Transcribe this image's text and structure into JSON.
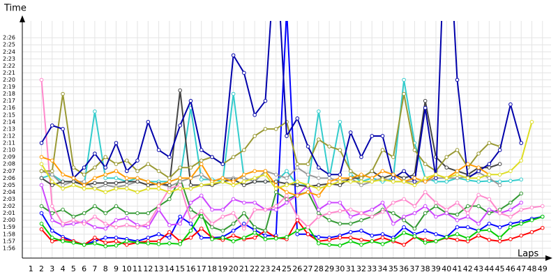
{
  "chart_data": {
    "type": "line",
    "y_label": "Time",
    "x_label": "Laps",
    "x": [
      1,
      2,
      3,
      4,
      5,
      6,
      7,
      8,
      9,
      10,
      11,
      12,
      13,
      14,
      15,
      16,
      17,
      18,
      19,
      20,
      21,
      22,
      23,
      24,
      25,
      26,
      27,
      28,
      29,
      30,
      31,
      32,
      33,
      34,
      35,
      36,
      37,
      38,
      39,
      40,
      41,
      42,
      43,
      44,
      45,
      46,
      47,
      48,
      49
    ],
    "xlim": [
      0.2,
      49.8
    ],
    "ylim": [
      114.6,
      148.4
    ],
    "yticks": [
      {
        "value": 116,
        "label": "1:56"
      },
      {
        "value": 117,
        "label": "1:57"
      },
      {
        "value": 118,
        "label": "1:58"
      },
      {
        "value": 119,
        "label": "1:59"
      },
      {
        "value": 120,
        "label": "2:00"
      },
      {
        "value": 121,
        "label": "2:01"
      },
      {
        "value": 122,
        "label": "2:02"
      },
      {
        "value": 123,
        "label": "2:03"
      },
      {
        "value": 124,
        "label": "2:04"
      },
      {
        "value": 125,
        "label": "2:05"
      },
      {
        "value": 126,
        "label": "2:06"
      },
      {
        "value": 127,
        "label": "2:07"
      },
      {
        "value": 128,
        "label": "2:08"
      },
      {
        "value": 129,
        "label": "2:09"
      },
      {
        "value": 130,
        "label": "2:10"
      },
      {
        "value": 131,
        "label": "2:11"
      },
      {
        "value": 132,
        "label": "2:12"
      },
      {
        "value": 133,
        "label": "2:13"
      },
      {
        "value": 134,
        "label": "2:14"
      },
      {
        "value": 135,
        "label": "2:15"
      },
      {
        "value": 136,
        "label": "2:16"
      },
      {
        "value": 137,
        "label": "2:17"
      },
      {
        "value": 138,
        "label": "2:18"
      },
      {
        "value": 139,
        "label": "2:19"
      },
      {
        "value": 140,
        "label": "2:20"
      },
      {
        "value": 141,
        "label": "2:21"
      },
      {
        "value": 142,
        "label": "2:22"
      },
      {
        "value": 143,
        "label": "2:23"
      },
      {
        "value": 144,
        "label": "2:24"
      },
      {
        "value": 145,
        "label": "2:25"
      },
      {
        "value": 146,
        "label": "2:26"
      }
    ],
    "grid": true,
    "series": [
      {
        "color": "#0000ff",
        "values": [
          null,
          121,
          118.5,
          117.6,
          117,
          116.5,
          117,
          117.5,
          117.5,
          117.3,
          117,
          117.5,
          118,
          117.5,
          120.5,
          119.5,
          117.5,
          117.5,
          117.6,
          118.5,
          119.5,
          118.6,
          117.8,
          117.8,
          150,
          118,
          118,
          117.6,
          117.5,
          117.8,
          118.3,
          118.5,
          117.8,
          118,
          117.5,
          119,
          118,
          118.5,
          118,
          117.6,
          119,
          119,
          118.5,
          119.5,
          119,
          119.5,
          119.8,
          120.2,
          120.5
        ]
      },
      {
        "color": "#ff0000",
        "values": [
          null,
          118.7,
          117,
          117.3,
          117,
          116.5,
          117.5,
          116.8,
          117,
          116.5,
          116.8,
          117,
          117,
          118.3,
          117,
          117.5,
          118.8,
          117.5,
          117.2,
          117.8,
          117.3,
          117.5,
          118.5,
          117.5,
          117.3,
          120,
          118,
          117,
          117.2,
          117.5,
          117.5,
          117.2,
          117,
          117.5,
          117,
          116.5,
          117.6,
          117.2,
          117,
          117.5,
          117.2,
          117,
          117.8,
          117.2,
          117,
          117.3,
          117.8,
          118.3,
          118.9
        ]
      },
      {
        "color": "#00cc00",
        "values": [
          null,
          119.5,
          117.5,
          117,
          116.8,
          116.5,
          116.7,
          116.3,
          116.4,
          117,
          116.8,
          116.7,
          116.6,
          116.7,
          116.6,
          118.5,
          121,
          117.3,
          117.5,
          117,
          117.5,
          118.2,
          117.3,
          117.4,
          117.6,
          118.5,
          119,
          116.7,
          116.5,
          116.4,
          117,
          116.5,
          117,
          116.6,
          117.2,
          118.2,
          117.7,
          116.8,
          117,
          117.6,
          118,
          117.4,
          118.5,
          118.6,
          117.5,
          119,
          119.5,
          120,
          120.5
        ]
      },
      {
        "color": "#339933",
        "values": [
          null,
          122,
          121,
          121.5,
          120.5,
          121,
          122,
          121,
          122,
          121,
          121,
          121,
          122,
          123,
          126,
          121.5,
          120.5,
          119,
          118.5,
          119.5,
          121,
          119,
          118.5,
          124,
          123,
          123.6,
          124,
          121,
          120,
          119.5,
          119.5,
          120,
          120.5,
          121.5,
          121,
          120,
          118.8,
          121,
          122,
          121,
          120.8,
          122,
          122,
          121,
          121.5,
          122.5,
          123.8,
          null,
          null
        ]
      },
      {
        "color": "#cc44ff",
        "values": [
          null,
          125,
          120,
          119.3,
          119.5,
          119.8,
          119,
          118.8,
          120,
          120.3,
          119.3,
          119,
          121.5,
          119.3,
          119.5,
          122.5,
          123.5,
          121.5,
          121.5,
          123,
          122.5,
          122.5,
          121.5,
          121.5,
          122.5,
          123.6,
          125,
          121.5,
          122.5,
          122.5,
          120.5,
          121,
          121.5,
          122.5,
          119.5,
          120.5,
          121,
          122,
          120.5,
          121,
          120,
          120.5,
          119.5,
          121.5,
          121,
          121.5,
          122.5,
          null,
          null
        ]
      },
      {
        "color": "#ff88cc",
        "values": [
          null,
          140,
          122,
          119.5,
          120,
          119.5,
          120.5,
          119.5,
          119,
          119.3,
          119,
          119.5,
          122,
          124.5,
          125,
          120,
          121.3,
          119.5,
          120.5,
          121,
          118.8,
          121.5,
          121.5,
          122,
          123.5,
          120.5,
          119,
          120.5,
          121,
          121.3,
          121.5,
          121,
          120.5,
          121.2,
          122.5,
          123,
          122,
          124,
          122.5,
          121.5,
          122.5,
          121,
          123.6,
          123,
          121,
          120.5,
          121.5,
          121.8,
          122
        ]
      },
      {
        "color": "#33cccc",
        "values": [
          null,
          126,
          126.5,
          125.5,
          125.5,
          125,
          135.5,
          126,
          126,
          125.5,
          126,
          125.5,
          125.5,
          125.5,
          126,
          136,
          125.8,
          125.8,
          125.5,
          138,
          126,
          125.5,
          125.5,
          125.5,
          127,
          125,
          125,
          135.5,
          126,
          134,
          126.5,
          125.5,
          126,
          125.5,
          126,
          140,
          131,
          126,
          125.5,
          125.5,
          126,
          125.7,
          125.5,
          125.6,
          125.5,
          125.6,
          125.8,
          null,
          null
        ]
      },
      {
        "color": "#999999",
        "values": [
          null,
          127,
          126.5,
          125,
          125.5,
          125.5,
          124.5,
          125,
          124.7,
          125,
          125.5,
          125,
          125.2,
          124.8,
          125.5,
          126,
          126.5,
          125.5,
          126,
          126,
          126,
          125.5,
          127,
          126.5,
          126,
          127.5,
          126.5,
          126,
          126,
          125.5,
          126,
          125,
          125.5,
          126,
          125.5,
          125.5,
          125.5,
          125.5,
          126,
          126,
          126,
          126.2,
          126.8,
          126,
          125,
          null,
          null,
          null,
          null
        ]
      },
      {
        "color": "#444444",
        "values": [
          null,
          126,
          125,
          125.5,
          125.5,
          125,
          125.3,
          125.3,
          125.3,
          125.5,
          125.5,
          125,
          125.2,
          125,
          138.5,
          125,
          125,
          125,
          125.5,
          125.8,
          125,
          125.5,
          125.5,
          125.5,
          125.2,
          125,
          124.8,
          125,
          125.2,
          125,
          126,
          126,
          127,
          126,
          126.5,
          126,
          126.5,
          137,
          129,
          127.5,
          127,
          126.5,
          127.5,
          127.5,
          128,
          null,
          null,
          null,
          null
        ]
      },
      {
        "color": "#999933",
        "values": [
          null,
          127,
          127,
          138,
          127.5,
          126.5,
          127.5,
          129,
          128,
          128.5,
          127,
          128,
          127,
          126,
          127.5,
          127.5,
          128.5,
          129,
          128,
          129,
          130,
          132,
          133,
          133,
          134,
          128,
          128,
          131.5,
          130.5,
          130,
          127,
          126,
          127,
          130,
          129,
          138,
          130,
          128,
          127,
          129,
          130,
          127.5,
          129.5,
          131,
          130.5,
          null,
          null,
          null,
          null
        ]
      },
      {
        "color": "#0000aa",
        "values": [
          null,
          131,
          133.5,
          133,
          126,
          127.5,
          129.5,
          127.5,
          131,
          127,
          128.5,
          134,
          130,
          129,
          133.5,
          137,
          130,
          129,
          128,
          143.5,
          141,
          135,
          137,
          160,
          132,
          134.5,
          130.5,
          127.5,
          126.5,
          126.5,
          132.5,
          129,
          132,
          132,
          126,
          127,
          125.5,
          136,
          126,
          168,
          140,
          126,
          127,
          128,
          130,
          136.5,
          131,
          null,
          null
        ]
      },
      {
        "color": "#ff9900",
        "values": [
          null,
          129,
          128.5,
          126.5,
          126,
          125,
          126,
          126.5,
          127,
          126,
          126,
          125.5,
          125,
          125.5,
          126,
          126,
          128,
          125.5,
          126,
          125.5,
          126.5,
          127,
          127,
          125,
          124,
          123.5,
          124,
          123.5,
          125.5,
          126,
          126,
          126.5,
          126,
          127,
          126.5,
          125.5,
          126,
          125.5,
          126.5,
          126,
          127,
          128,
          127.5,
          126.5,
          null,
          null,
          null,
          null,
          null
        ]
      },
      {
        "color": "#dddd22",
        "values": [
          null,
          128,
          125.5,
          124.5,
          125,
          124.5,
          124.5,
          124,
          124.5,
          124.5,
          124,
          124.5,
          124.5,
          124,
          124.5,
          124.5,
          125,
          125.2,
          125.5,
          125,
          125.5,
          126,
          126.5,
          124.5,
          125,
          125.5,
          125,
          124.5,
          125,
          125.5,
          125.5,
          125.5,
          125.5,
          125.8,
          125.5,
          125.5,
          125,
          126,
          126.5,
          126,
          126.5,
          126,
          126,
          126.5,
          126.5,
          127,
          128.5,
          134,
          null
        ]
      }
    ]
  }
}
